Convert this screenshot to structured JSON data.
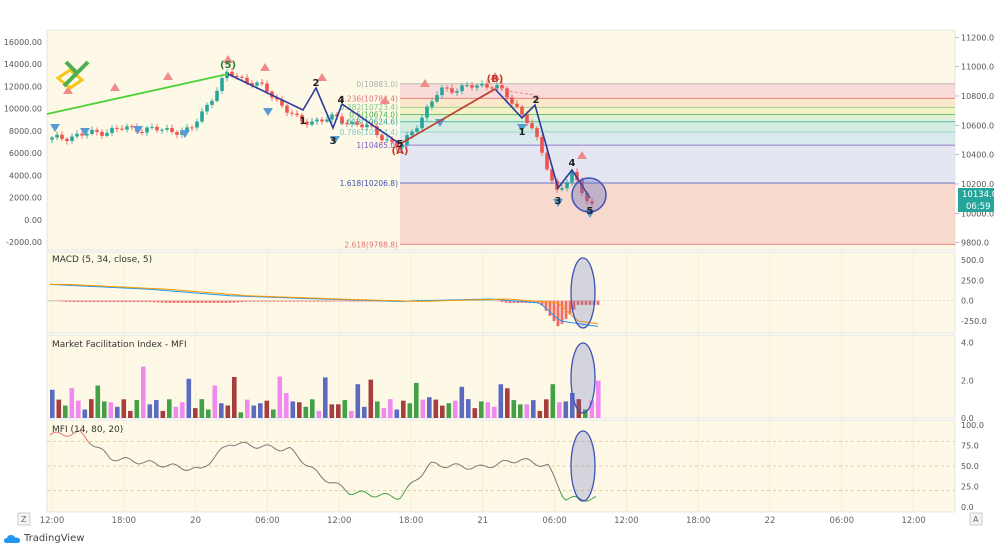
{
  "branding": {
    "label": "TradingView"
  },
  "price_panel": {
    "left_axis": [
      "16000.00",
      "14000.00",
      "12000.00",
      "10000.00",
      "8000.00",
      "6000.00",
      "4000.00",
      "2000.00",
      "0.00",
      "-2000.00"
    ],
    "left_axis_values": [
      16000,
      14000,
      12000,
      10000,
      8000,
      6000,
      4000,
      2000,
      0,
      -2000
    ],
    "right_axis": [
      "11200.0",
      "11000.0",
      "10800.0",
      "10600.0",
      "10400.0",
      "10200.0",
      "10000.0",
      "9800.0"
    ],
    "right_axis_values": [
      11200,
      11000,
      10800,
      10600,
      10400,
      10200,
      10000,
      9800
    ],
    "price_label": "10134.0",
    "timer_label": "06:59",
    "fib_levels": [
      {
        "label": "0(10883.0)",
        "price": 10883.0,
        "color": "#b0b0b0"
      },
      {
        "label": "0.236(10784.4)",
        "price": 10784.4,
        "color": "#e57373"
      },
      {
        "label": "0.382(10723.4)",
        "price": 10723.4,
        "color": "#81c784"
      },
      {
        "label": "0.5(10674.0)",
        "price": 10674.0,
        "color": "#4caf50"
      },
      {
        "label": "0.618(10624.6)",
        "price": 10624.6,
        "color": "#26a69a"
      },
      {
        "label": "0.786(10554.4)",
        "price": 10554.4,
        "color": "#80cbc4"
      },
      {
        "label": "1(10465.0)",
        "price": 10465.0,
        "color": "#7e57c2"
      },
      {
        "label": "1.618(10206.8)",
        "price": 10206.8,
        "color": "#3f51b5"
      },
      {
        "label": "2.618(9788.8)",
        "price": 9788.8,
        "color": "#e57373"
      }
    ],
    "wave_labels": [
      "(5)",
      "2",
      "1",
      "4",
      "3",
      "5",
      "(A)",
      "(B)",
      "2",
      "1",
      "4",
      "3",
      "5"
    ]
  },
  "macd_panel": {
    "title": "MACD (5, 34, close, 5)",
    "axis": [
      "500.0",
      "250.0",
      "0.0",
      "-250.0"
    ],
    "axis_values": [
      500,
      250,
      0,
      -250
    ]
  },
  "mfi_bw_panel": {
    "title": "Market Facilitation Index - MFI",
    "axis": [
      "4.0",
      "2.0",
      "0.0"
    ],
    "axis_values": [
      4,
      2,
      0
    ]
  },
  "mfi_panel": {
    "title": "MFI (14, 80, 20)",
    "axis": [
      "100.0",
      "75.0",
      "50.0",
      "25.0",
      "0.0"
    ],
    "axis_values": [
      100,
      75,
      50,
      25,
      0
    ]
  },
  "time_axis": [
    "12:00",
    "18:00",
    "20",
    "06:00",
    "12:00",
    "18:00",
    "21",
    "06:00",
    "12:00",
    "18:00",
    "22",
    "06:00",
    "12:00"
  ],
  "chart_data": [
    {
      "type": "line",
      "title": "",
      "x": [
        "12:00",
        "18:00",
        "20",
        "06:00",
        "12:00",
        "18:00",
        "21",
        "06:00",
        "12:00"
      ],
      "series": [
        {
          "values": [
            10500,
            10560,
            10620,
            10960,
            10620,
            10430,
            10900,
            10520,
            10130
          ]
        }
      ],
      "ylim": [
        9750,
        11250
      ]
    },
    {
      "type": "line",
      "title": "MACD (5, 34, close, 5)",
      "x": [
        "12:00",
        "18:00",
        "20",
        "06:00",
        "12:00",
        "18:00",
        "21",
        "06:00",
        "12:00"
      ],
      "series": [
        {
          "values": [
            200,
            140,
            60,
            20,
            0,
            -10,
            20,
            -30,
            -320
          ]
        }
      ],
      "ylim": [
        -400,
        600
      ]
    },
    {
      "type": "bar",
      "title": "Market Facilitation Index - MFI",
      "ylim": [
        0,
        4.4
      ]
    },
    {
      "type": "line",
      "title": "MFI (14, 80, 20)",
      "x": [
        "12:00",
        "18:00",
        "20",
        "06:00",
        "12:00",
        "18:00",
        "21",
        "06:00",
        "12:00"
      ],
      "series": [
        {
          "values": [
            88,
            90,
            55,
            78,
            50,
            15,
            52,
            50,
            10
          ]
        }
      ],
      "levels": [
        80,
        50,
        20
      ],
      "ylim": [
        0,
        100
      ]
    }
  ]
}
